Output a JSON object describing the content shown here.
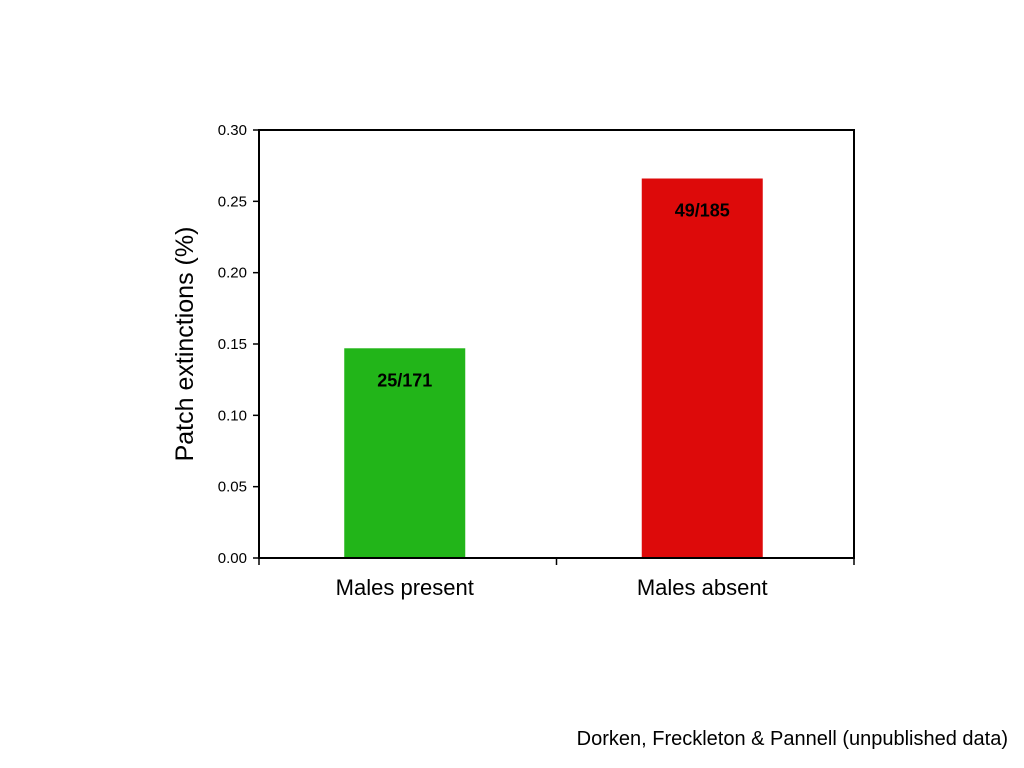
{
  "chart_data": {
    "type": "bar",
    "categories": [
      "Males present",
      "Males absent"
    ],
    "values": [
      0.147,
      0.266
    ],
    "data_labels": [
      "25/171",
      "49/185"
    ],
    "colors": [
      "#22b519",
      "#dd0a0a"
    ],
    "ylabel": "Patch extinctions (%)",
    "ylim": [
      0,
      0.3
    ],
    "yticks": [
      "0.00",
      "0.05",
      "0.10",
      "0.15",
      "0.20",
      "0.25",
      "0.30"
    ],
    "grid": false
  },
  "citation": "Dorken, Freckleton & Pannell (unpublished data)"
}
